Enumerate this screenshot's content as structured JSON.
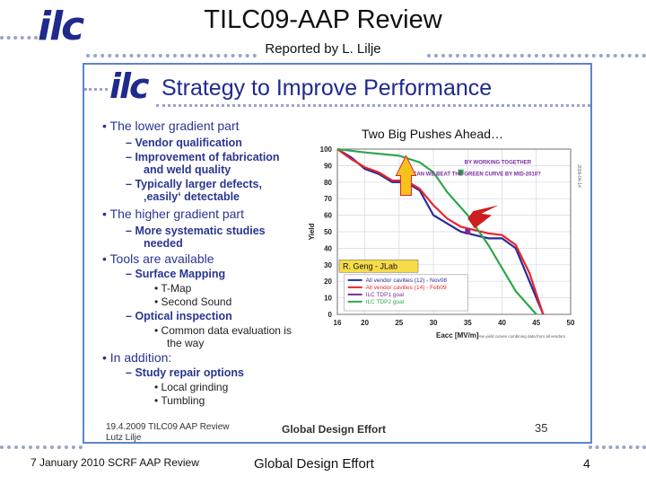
{
  "slide": {
    "logo": "ilc",
    "title": "TILC09-AAP Review",
    "subtitle": "Reported by L. Lilje",
    "footer_left": "7 January 2010  SCRF AAP Review",
    "footer_center": "Global Design Effort",
    "page_number": "4"
  },
  "inset": {
    "logo": "ilc",
    "title": "Strategy to Improve Performance",
    "bullets": [
      {
        "text": "The lower gradient part",
        "subs": [
          {
            "text": "Vendor qualification"
          },
          {
            "text": "Improvement of fabrication",
            "cont": "and weld quality"
          },
          {
            "text": "Typically larger defects,",
            "cont": "‚easily‘ detectable"
          }
        ]
      },
      {
        "text": "The higher gradient part",
        "subs": [
          {
            "text": "More systematic studies",
            "cont": "needed"
          }
        ]
      },
      {
        "text": "Tools are available",
        "subs": [
          {
            "text": "Surface Mapping",
            "items": [
              "T-Map",
              "Second Sound"
            ]
          },
          {
            "text": "Optical inspection",
            "items": [
              "Common data evaluation is"
            ],
            "item_cont": "the way"
          }
        ]
      },
      {
        "text": "In addition:",
        "subs": [
          {
            "text": "Study repair options",
            "items": [
              "Local grinding",
              "Tumbling"
            ]
          }
        ]
      }
    ],
    "footer_date": "19.4.2009 TILC09 AAP Review",
    "footer_name": "Lutz Lilje",
    "footer_center": "Global Design Effort",
    "footer_page": "35"
  },
  "chart_data": {
    "type": "line",
    "title": "Two Big Pushes Ahead…",
    "xlabel": "Eacc [MV/m]",
    "ylabel": "Yield",
    "xlim": [
      16,
      50
    ],
    "ylim": [
      0,
      100
    ],
    "x_ticks": [
      16,
      20,
      25,
      30,
      35,
      40,
      45,
      50
    ],
    "y_ticks": [
      0,
      10,
      20,
      30,
      40,
      50,
      60,
      70,
      80,
      90,
      100
    ],
    "annotation": "BY WORKING TOGETHER CAN WE BEAT THE GREEN CURVE BY MID-2010?",
    "credit": "R. Geng - JLab",
    "side_label": "2009-04-14",
    "footnote": "Few yield curves combining data from all vendors",
    "series": [
      {
        "name": "All vendor cavities (12) - Nov08",
        "color": "#2a2a99",
        "x": [
          16,
          18,
          20,
          22,
          24,
          26,
          28,
          30,
          32,
          34,
          36,
          38,
          40,
          42,
          44,
          46
        ],
        "y": [
          100,
          95,
          88,
          85,
          80,
          80,
          75,
          60,
          55,
          50,
          48,
          46,
          46,
          40,
          20,
          0
        ]
      },
      {
        "name": "All vendor cavities (14) - Feb09",
        "color": "#e8252a",
        "x": [
          16,
          18,
          20,
          22,
          24,
          26,
          28,
          30,
          32,
          34,
          36,
          38,
          40,
          42,
          44,
          46
        ],
        "y": [
          100,
          94,
          89,
          86,
          81,
          81,
          76,
          66,
          58,
          53,
          51,
          49,
          48,
          42,
          25,
          0
        ]
      },
      {
        "name": "ILC TDP1 goal",
        "color": "#7a2aa0",
        "marker": true,
        "x": [
          35
        ],
        "y": [
          50
        ]
      },
      {
        "name": "ILC TDP2 goal",
        "color": "#2ea84a",
        "x": [
          16,
          20,
          25,
          28,
          30,
          32,
          35,
          38,
          40,
          42,
          45
        ],
        "y": [
          100,
          98,
          96,
          92,
          86,
          74,
          60,
          42,
          28,
          14,
          0
        ]
      }
    ]
  }
}
